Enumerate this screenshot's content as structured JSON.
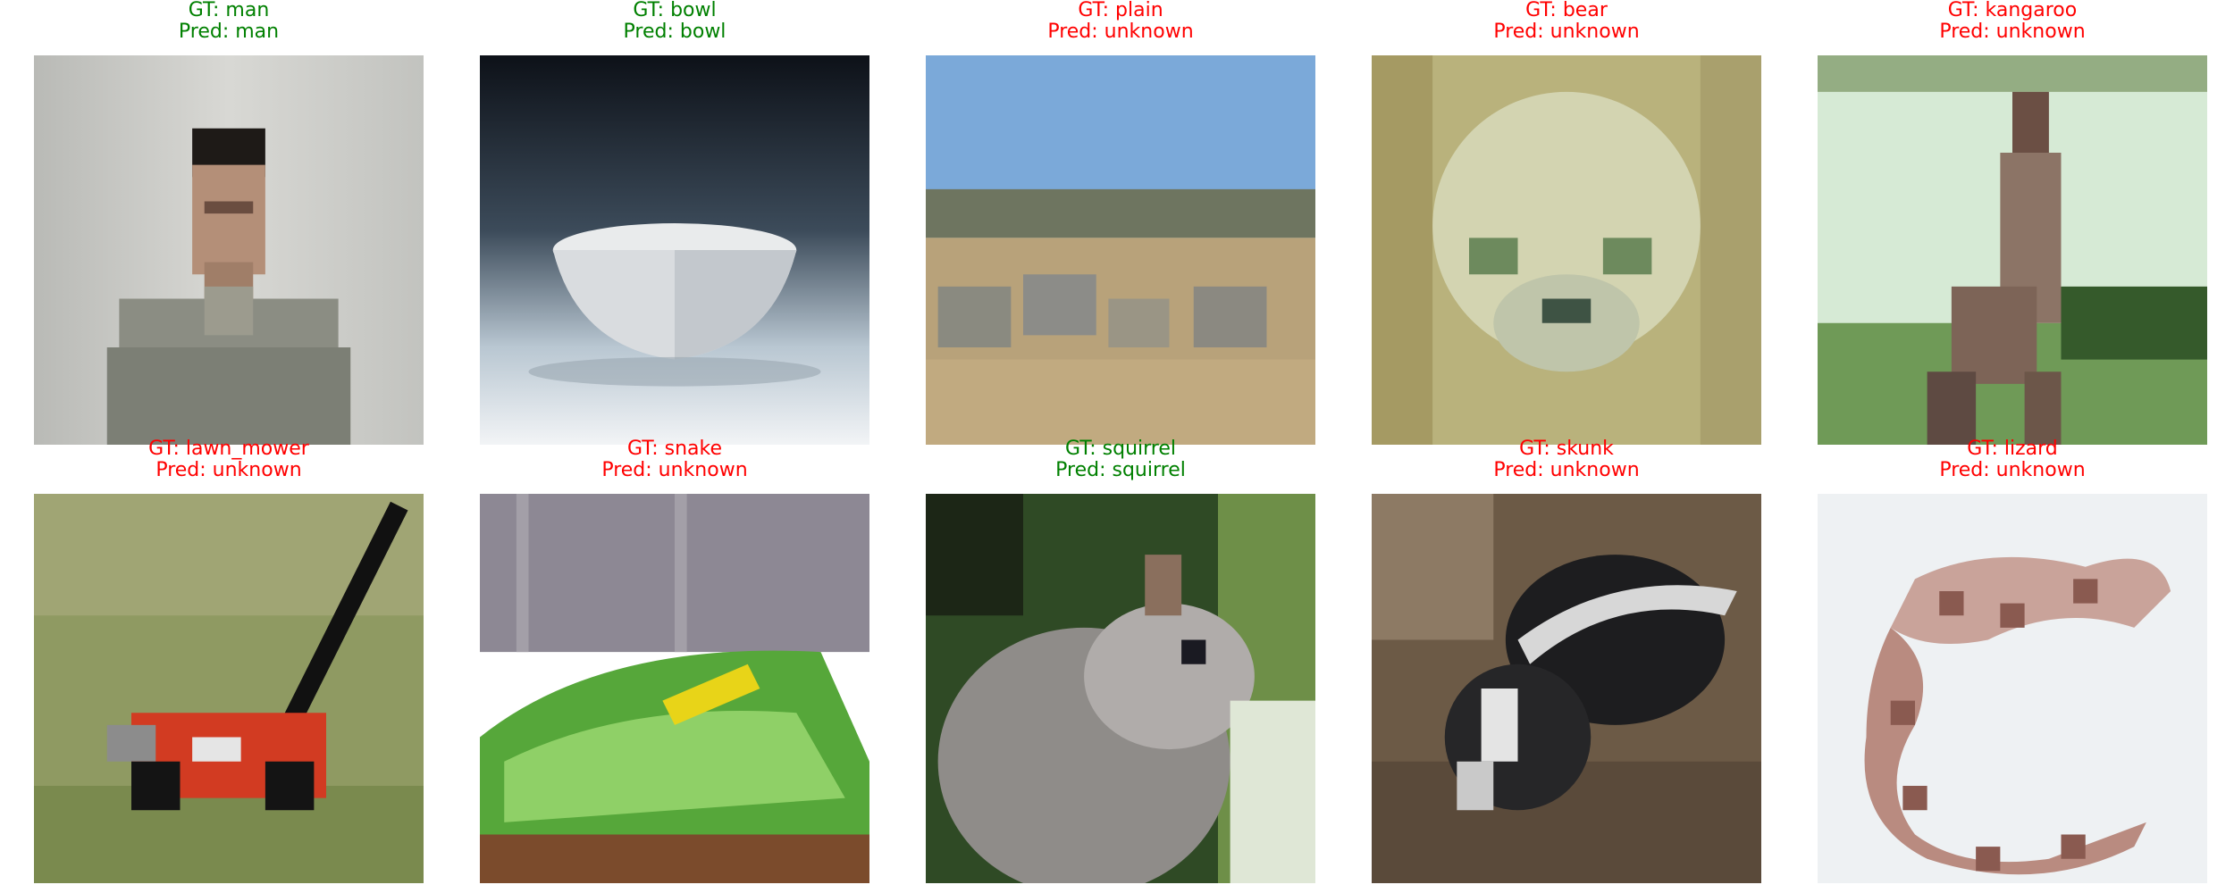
{
  "colors": {
    "correct": "#008000",
    "wrong": "#ff0000"
  },
  "samples": [
    {
      "gt": "GT: man",
      "pred": "Pred: man",
      "correct": true
    },
    {
      "gt": "GT: bowl",
      "pred": "Pred: bowl",
      "correct": true
    },
    {
      "gt": "GT: plain",
      "pred": "Pred: unknown",
      "correct": false
    },
    {
      "gt": "GT: bear",
      "pred": "Pred: unknown",
      "correct": false
    },
    {
      "gt": "GT: kangaroo",
      "pred": "Pred: unknown",
      "correct": false
    },
    {
      "gt": "GT: lawn_mower",
      "pred": "Pred: unknown",
      "correct": false
    },
    {
      "gt": "GT: snake",
      "pred": "Pred: unknown",
      "correct": false
    },
    {
      "gt": "GT: squirrel",
      "pred": "Pred: squirrel",
      "correct": true
    },
    {
      "gt": "GT: skunk",
      "pred": "Pred: unknown",
      "correct": false
    },
    {
      "gt": "GT: lizard",
      "pred": "Pred: unknown",
      "correct": false
    }
  ]
}
